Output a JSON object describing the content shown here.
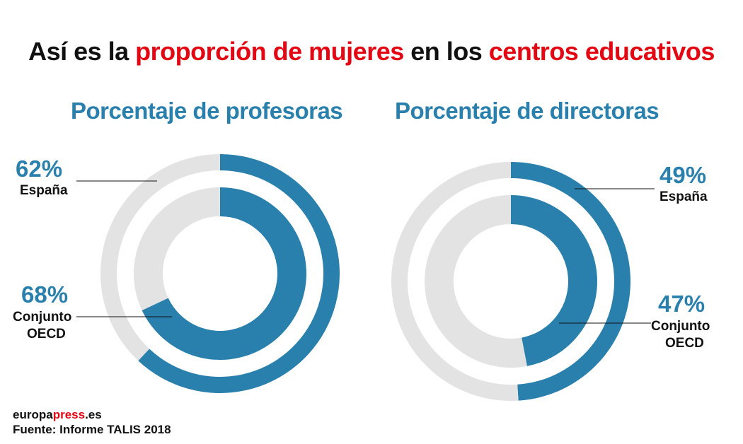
{
  "title": {
    "parts": [
      {
        "text": "Así es la ",
        "highlight": false
      },
      {
        "text": "proporción de mujeres",
        "highlight": true
      },
      {
        "text": " en los ",
        "highlight": false
      },
      {
        "text": "centros educativos",
        "highlight": true
      }
    ]
  },
  "colors": {
    "accent_red": "#e30613",
    "series_blue": "#2a80ad",
    "remainder_gray": "#e3e3e3"
  },
  "chart_data": [
    {
      "type": "pie",
      "subtype": "nested-donut",
      "title": "Porcentaje de profesoras",
      "unit": "%",
      "series": [
        {
          "name": "España",
          "ring": "outer",
          "value": 62,
          "value_label": "62%"
        },
        {
          "name": "Conjunto OECD",
          "ring": "inner",
          "value": 68,
          "value_label": "68%"
        }
      ]
    },
    {
      "type": "pie",
      "subtype": "nested-donut",
      "title": "Porcentaje de directoras",
      "unit": "%",
      "series": [
        {
          "name": "España",
          "ring": "outer",
          "value": 49,
          "value_label": "49%"
        },
        {
          "name": "Conjunto OECD",
          "ring": "inner",
          "value": 47,
          "value_label": "47%"
        }
      ]
    }
  ],
  "labels": {
    "teachers_spain": "España",
    "teachers_oecd_line1": "Conjunto",
    "teachers_oecd_line2": "OECD",
    "directors_spain": "España",
    "directors_oecd_line1": "Conjunto",
    "directors_oecd_line2": "OECD"
  },
  "footer": {
    "brand_main": "europa",
    "brand_accent": "press",
    "brand_suffix": ".es",
    "source": "Fuente: Informe TALIS 2018"
  }
}
